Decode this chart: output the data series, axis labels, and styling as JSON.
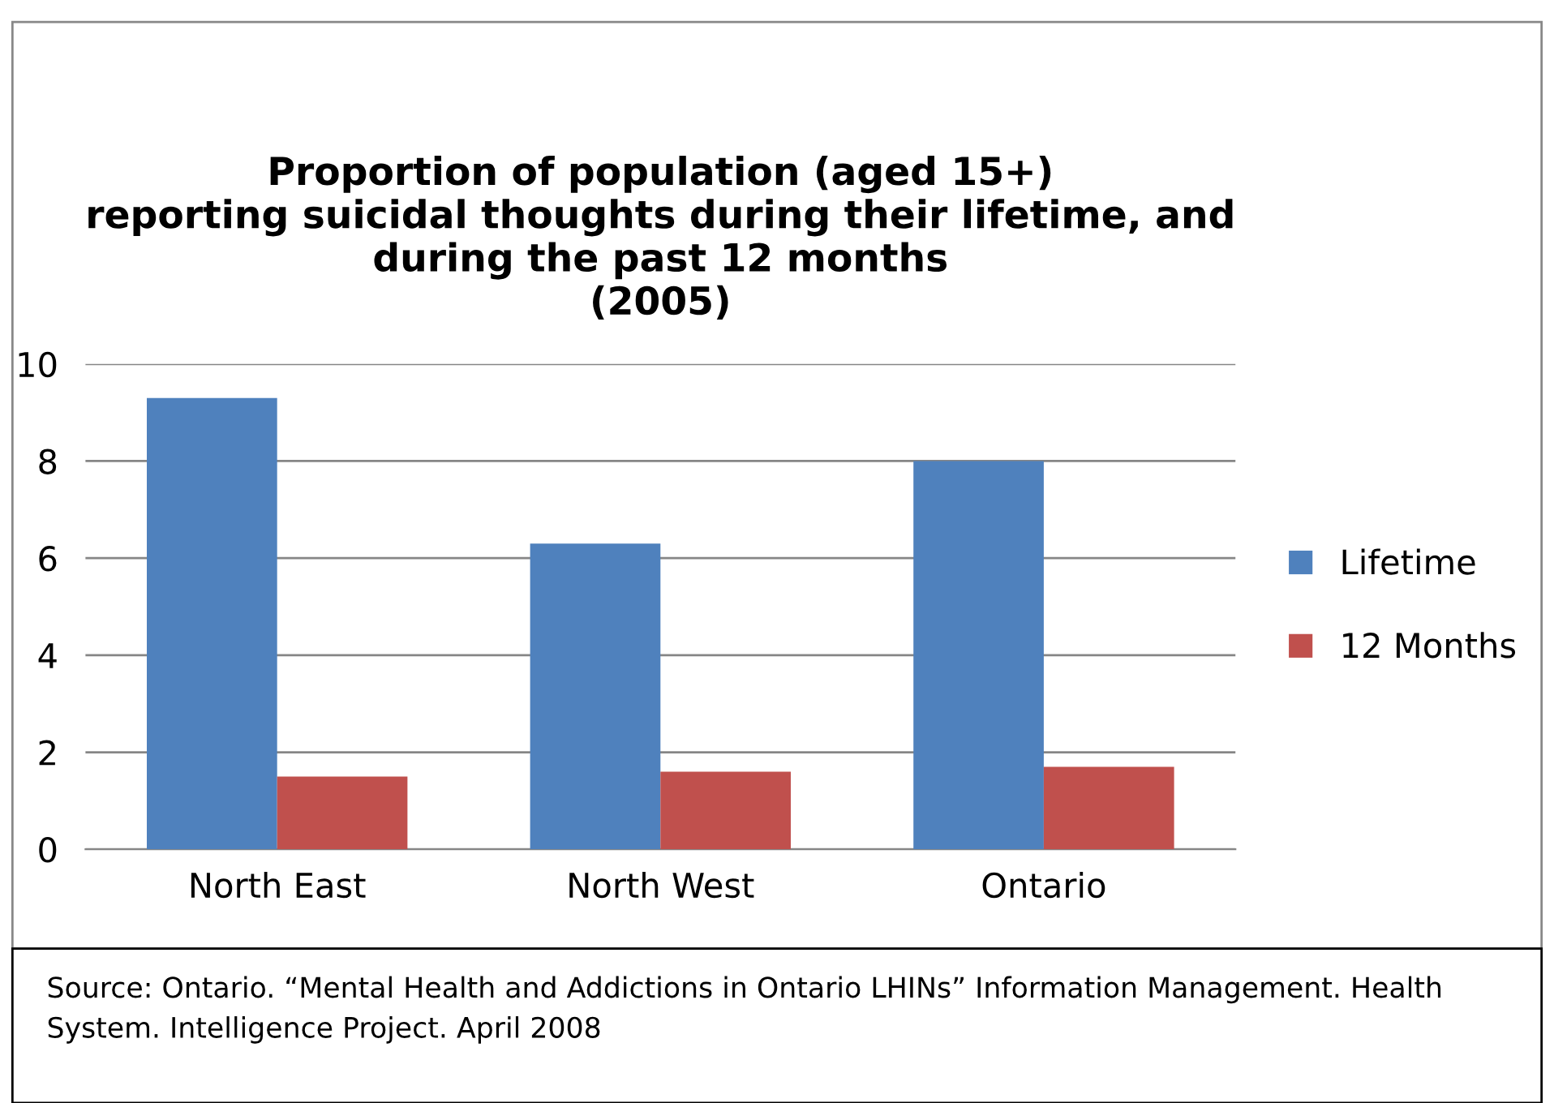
{
  "chart_data": {
    "type": "bar",
    "title": "Proportion of population (aged 15+)\nreporting suicidal thoughts during their lifetime, and\nduring the past 12 months\n(2005)",
    "categories": [
      "North East",
      "North West",
      "Ontario"
    ],
    "series": [
      {
        "name": "Lifetime",
        "color": "#4f81bd",
        "values": [
          9.3,
          6.3,
          8.0
        ]
      },
      {
        "name": "12 Months",
        "color": "#c0504d",
        "values": [
          1.5,
          1.6,
          1.7
        ]
      }
    ],
    "ylim": [
      0,
      10
    ],
    "yticks": [
      0,
      2,
      4,
      6,
      8,
      10
    ],
    "grid": "y",
    "legend": "right",
    "annotations": [
      "Source: Ontario. “Mental Health and Addictions in Ontario LHINs” Information Management. Health System. Intelligence Project. April 2008"
    ]
  }
}
